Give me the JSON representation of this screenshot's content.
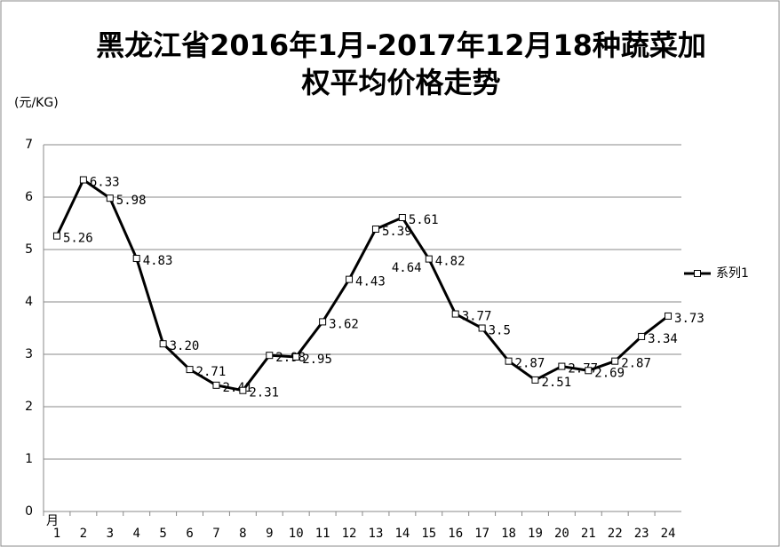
{
  "chart_data": {
    "type": "line",
    "title": "黑龙江省2016年1月-2017年12月18种蔬菜加权平均价格走势",
    "y_label": "(元/KG)",
    "x_label": "月",
    "categories": [
      "1",
      "2",
      "3",
      "4",
      "5",
      "6",
      "7",
      "8",
      "9",
      "10",
      "11",
      "12",
      "13",
      "14",
      "15",
      "16",
      "17",
      "18",
      "19",
      "20",
      "21",
      "22",
      "23",
      "24"
    ],
    "series": [
      {
        "name": "系列1",
        "color": "#000000",
        "values": [
          5.26,
          6.33,
          5.98,
          4.83,
          3.2,
          2.71,
          2.41,
          2.31,
          2.98,
          2.95,
          3.62,
          4.43,
          5.39,
          5.61,
          4.82,
          3.77,
          3.5,
          2.87,
          2.51,
          2.77,
          2.69,
          2.87,
          3.34,
          3.73
        ],
        "value_labels": [
          "5.26",
          "6.33",
          "5.98",
          "4.83",
          "3.20",
          "2.71",
          "2.41",
          "2.31",
          "2.98",
          "2.95",
          "3.62",
          "4.43",
          "5.39",
          "5.61",
          "4.82",
          "3.77",
          "3.5",
          "2.87",
          "2.51",
          "2.77",
          "2.69",
          "2.87",
          "3.34",
          "3.73"
        ]
      }
    ],
    "annotations": [
      "4.64"
    ],
    "ylim": [
      0,
      7
    ],
    "yticks": [
      0,
      1,
      2,
      3,
      4,
      5,
      6,
      7
    ],
    "grid": true,
    "legend": "right"
  }
}
